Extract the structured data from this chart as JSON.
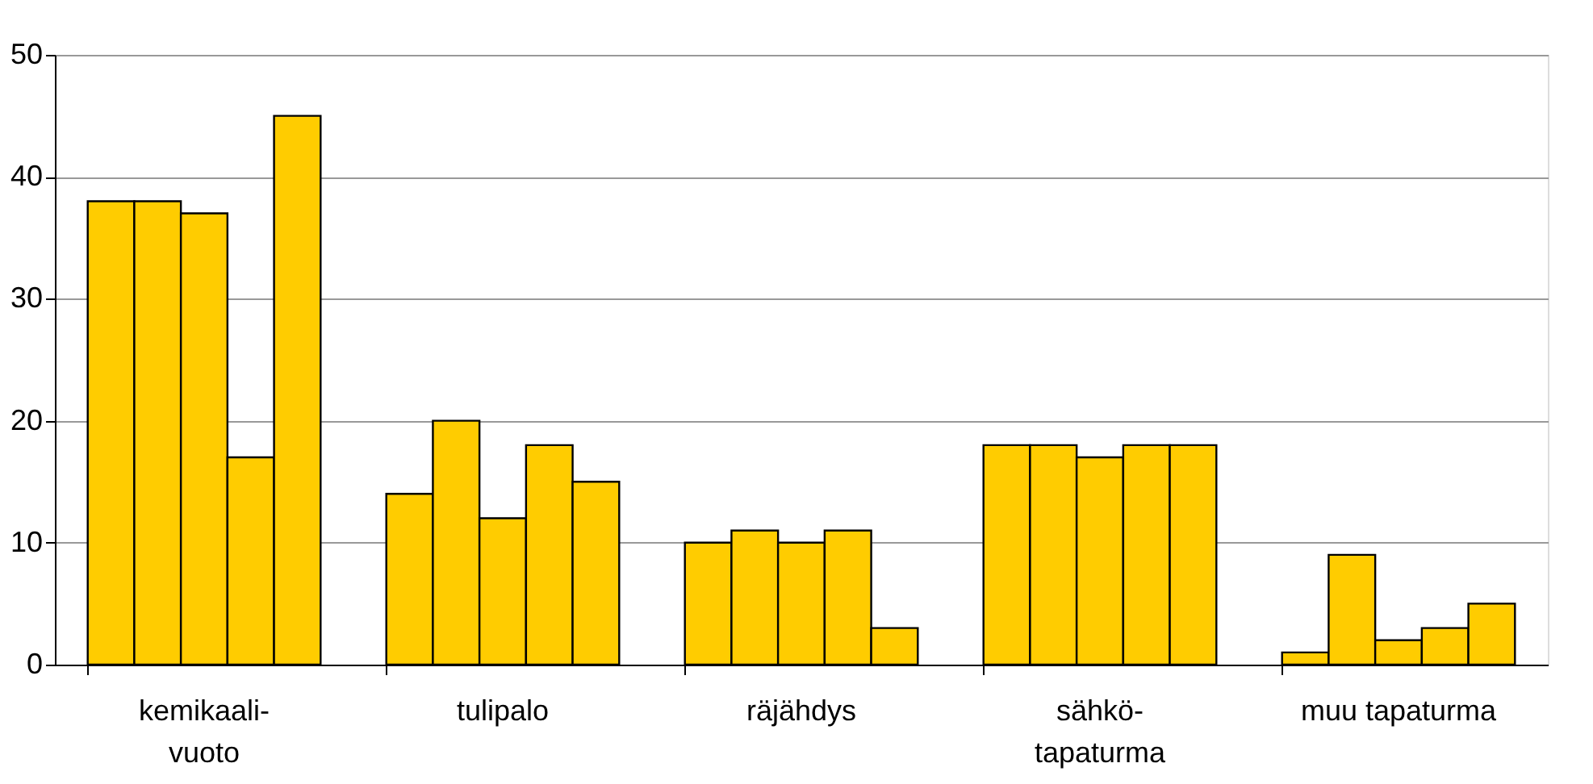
{
  "chart_data": {
    "type": "bar",
    "categories": [
      "kemikaali-\nvuoto",
      "tulipalo",
      "räjähdys",
      "sähkö-\ntapaturma",
      "muu tapaturma"
    ],
    "series": [
      {
        "color": "#ffcc00",
        "values": [
          38,
          14,
          10,
          18,
          1
        ]
      },
      {
        "color": "#ffcc00",
        "values": [
          38,
          20,
          11,
          18,
          9
        ]
      },
      {
        "color": "#ffcc00",
        "values": [
          37,
          12,
          10,
          17,
          2
        ]
      },
      {
        "color": "#ffcc00",
        "values": [
          17,
          18,
          11,
          18,
          3
        ]
      },
      {
        "color": "#ffcc00",
        "values": [
          45,
          15,
          3,
          18,
          5
        ]
      }
    ],
    "ylim": [
      0,
      50
    ],
    "yticks": [
      0,
      10,
      20,
      30,
      40,
      50
    ],
    "grid": "y",
    "legend": false
  }
}
